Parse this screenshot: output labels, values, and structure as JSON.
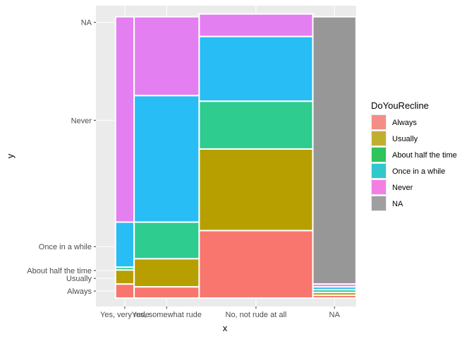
{
  "chart_data": {
    "type": "mosaic",
    "xlabel": "x",
    "ylabel": "y",
    "x_categories": [
      "Yes, very rude",
      "Yes, somewhat rude",
      "No, not rude at all",
      "NA"
    ],
    "x_widths": [
      0.095,
      0.332,
      0.58,
      0.221
    ],
    "y_categories": [
      "Always",
      "Usually",
      "About half the time",
      "Once in a while",
      "Never",
      "NA"
    ],
    "y_tick_positions": [
      0.025,
      0.07,
      0.098,
      0.183,
      0.632,
      0.98
    ],
    "legend": {
      "title": "DoYouRecline",
      "entries": [
        {
          "label": "Always",
          "color": "#F8766D"
        },
        {
          "label": "Usually",
          "color": "#B79F00"
        },
        {
          "label": "About half the time",
          "color": "#00BA38"
        },
        {
          "label": "Once in a while",
          "color": "#00BFC4"
        },
        {
          "label": "Never",
          "color": "#F564E3"
        },
        {
          "label": "NA",
          "color": "#8c8c8c"
        }
      ]
    },
    "fill_colors": [
      "#F8766D",
      "#B79F00",
      "#2ECC8F",
      "#28BDF4",
      "#E37FF0",
      "#979797"
    ],
    "columns": [
      {
        "category": "Yes, very rude",
        "proportions": [
          0.05,
          0.05,
          0.01,
          0.16,
          0.73,
          0.0
        ]
      },
      {
        "category": "Yes, somewhat rude",
        "proportions": [
          0.04,
          0.1,
          0.13,
          0.45,
          0.28,
          0.0
        ]
      },
      {
        "category": "No, not rude at all",
        "proportions": [
          0.24,
          0.29,
          0.17,
          0.23,
          0.08,
          0.0
        ]
      },
      {
        "category": "NA",
        "proportions": [
          0.01,
          0.01,
          0.01,
          0.01,
          0.01,
          0.95
        ]
      }
    ]
  }
}
